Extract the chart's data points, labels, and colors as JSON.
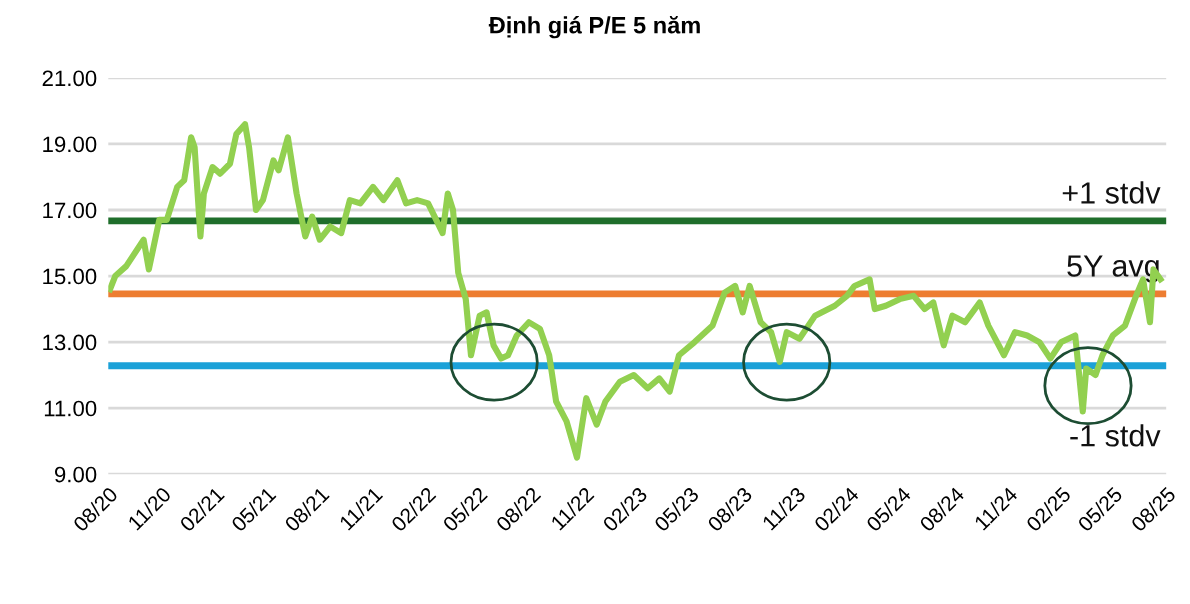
{
  "chart_data": {
    "type": "line",
    "title": "Định giá P/E 5 năm",
    "x": [
      "2020-08-04",
      "2020-08-13",
      "2020-09-01",
      "2020-10-01",
      "2020-10-10",
      "2020-10-28",
      "2020-11-10",
      "2020-11-28",
      "2020-12-10",
      "2020-12-22",
      "2020-12-28",
      "2021-01-07",
      "2021-01-13",
      "2021-01-28",
      "2021-02-10",
      "2021-02-27",
      "2021-03-10",
      "2021-03-25",
      "2021-04-01",
      "2021-04-13",
      "2021-04-25",
      "2021-05-13",
      "2021-05-22",
      "2021-06-07",
      "2021-06-22",
      "2021-07-07",
      "2021-07-19",
      "2021-08-01",
      "2021-08-19",
      "2021-09-07",
      "2021-09-22",
      "2021-10-10",
      "2021-11-01",
      "2021-11-19",
      "2021-12-13",
      "2021-12-28",
      "2022-01-16",
      "2022-02-04",
      "2022-02-18",
      "2022-03-01",
      "2022-03-10",
      "2022-03-19",
      "2022-03-28",
      "2022-04-10",
      "2022-04-19",
      "2022-05-04",
      "2022-05-16",
      "2022-05-28",
      "2022-06-10",
      "2022-06-22",
      "2022-07-07",
      "2022-07-28",
      "2022-08-16",
      "2022-09-01",
      "2022-09-13",
      "2022-10-01",
      "2022-10-19",
      "2022-11-04",
      "2022-11-22",
      "2022-12-07",
      "2023-01-01",
      "2023-01-25",
      "2023-02-18",
      "2023-03-10",
      "2023-03-28",
      "2023-04-13",
      "2023-05-10",
      "2023-06-10",
      "2023-07-01",
      "2023-07-19",
      "2023-08-01",
      "2023-08-13",
      "2023-09-01",
      "2023-09-19",
      "2023-10-04",
      "2023-10-16",
      "2023-11-07",
      "2023-12-04",
      "2024-01-07",
      "2024-01-28",
      "2024-02-10",
      "2024-03-07",
      "2024-03-16",
      "2024-04-04",
      "2024-04-28",
      "2024-05-22",
      "2024-06-10",
      "2024-06-25",
      "2024-07-13",
      "2024-07-28",
      "2024-08-19",
      "2024-09-13",
      "2024-09-28",
      "2024-10-25",
      "2024-11-13",
      "2024-12-04",
      "2024-12-25",
      "2025-01-13",
      "2025-02-01",
      "2025-02-25",
      "2025-03-10",
      "2025-03-16",
      "2025-04-01",
      "2025-04-13",
      "2025-05-01",
      "2025-05-22",
      "2025-06-10",
      "2025-06-22",
      "2025-07-04",
      "2025-07-10",
      "2025-07-22"
    ],
    "values": [
      14.6,
      15.0,
      15.3,
      16.1,
      15.2,
      16.7,
      16.7,
      17.7,
      17.9,
      19.2,
      18.9,
      16.2,
      17.5,
      18.3,
      18.1,
      18.4,
      19.3,
      19.6,
      18.9,
      17.0,
      17.3,
      18.5,
      18.2,
      19.2,
      17.5,
      16.2,
      16.8,
      16.1,
      16.5,
      16.3,
      17.3,
      17.2,
      17.7,
      17.3,
      17.9,
      17.2,
      17.3,
      17.2,
      16.7,
      16.3,
      17.5,
      17.0,
      15.1,
      14.3,
      12.6,
      13.8,
      13.9,
      12.9,
      12.5,
      12.6,
      13.2,
      13.6,
      13.4,
      12.6,
      11.2,
      10.6,
      9.5,
      11.3,
      10.5,
      11.2,
      11.8,
      12.0,
      11.6,
      11.9,
      11.5,
      12.6,
      13.0,
      13.5,
      14.5,
      14.7,
      13.9,
      14.7,
      13.6,
      13.3,
      12.4,
      13.3,
      13.1,
      13.8,
      14.1,
      14.4,
      14.7,
      14.9,
      14.0,
      14.1,
      14.3,
      14.4,
      14.0,
      14.2,
      12.9,
      13.8,
      13.6,
      14.2,
      13.5,
      12.6,
      13.3,
      13.2,
      13.0,
      12.5,
      13.0,
      13.2,
      10.9,
      12.2,
      12.0,
      12.6,
      13.2,
      13.5,
      14.4,
      14.9,
      13.6,
      15.2,
      14.9
    ],
    "color": "#92d050",
    "xlim": [
      "2020-08-01",
      "2025-08-01"
    ],
    "xticks": [
      {
        "value": "2020-08-01",
        "label": "08/20"
      },
      {
        "value": "2020-11-01",
        "label": "11/20"
      },
      {
        "value": "2021-02-01",
        "label": "02/21"
      },
      {
        "value": "2021-05-01",
        "label": "05/21"
      },
      {
        "value": "2021-08-01",
        "label": "08/21"
      },
      {
        "value": "2021-11-01",
        "label": "11/21"
      },
      {
        "value": "2022-02-01",
        "label": "02/22"
      },
      {
        "value": "2022-05-01",
        "label": "05/22"
      },
      {
        "value": "2022-08-01",
        "label": "08/22"
      },
      {
        "value": "2022-11-01",
        "label": "11/22"
      },
      {
        "value": "2023-02-01",
        "label": "02/23"
      },
      {
        "value": "2023-05-01",
        "label": "05/23"
      },
      {
        "value": "2023-08-01",
        "label": "08/23"
      },
      {
        "value": "2023-11-01",
        "label": "11/23"
      },
      {
        "value": "2024-02-01",
        "label": "02/24"
      },
      {
        "value": "2024-05-01",
        "label": "05/24"
      },
      {
        "value": "2024-08-01",
        "label": "08/24"
      },
      {
        "value": "2024-11-01",
        "label": "11/24"
      },
      {
        "value": "2025-02-01",
        "label": "02/25"
      },
      {
        "value": "2025-05-01",
        "label": "05/25"
      },
      {
        "value": "2025-08-01",
        "label": "08/25"
      }
    ],
    "ylim": [
      9,
      21
    ],
    "yticks": [
      {
        "value": 9,
        "label": "9.00"
      },
      {
        "value": 11,
        "label": "11.00"
      },
      {
        "value": 13,
        "label": "13.00"
      },
      {
        "value": 15,
        "label": "15.00"
      },
      {
        "value": 17,
        "label": "17.00"
      },
      {
        "value": 19,
        "label": "19.00"
      },
      {
        "value": 21,
        "label": "21.00"
      }
    ],
    "grid": "y",
    "ref_lines": [
      {
        "axis": "y",
        "value": 16.67,
        "label": "+1 stdv",
        "color": "#1f6e2b"
      },
      {
        "axis": "y",
        "value": 14.46,
        "label": "5Y avg",
        "color": "#ed7d31"
      },
      {
        "axis": "y",
        "value": 12.28,
        "label": "-1 stdv",
        "color": "#1ba1d8"
      }
    ]
  }
}
